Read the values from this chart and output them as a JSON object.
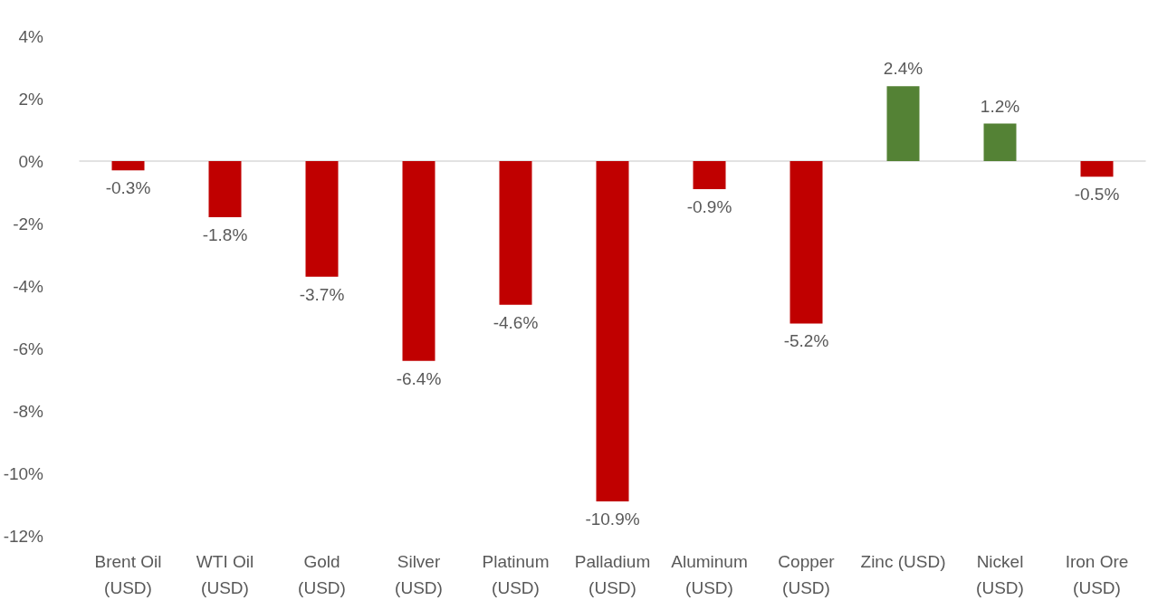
{
  "chart_data": {
    "type": "bar",
    "categories": [
      "Brent Oil\n(USD)",
      "WTI Oil\n(USD)",
      "Gold\n(USD)",
      "Silver\n(USD)",
      "Platinum\n(USD)",
      "Palladium\n(USD)",
      "Aluminum\n(USD)",
      "Copper\n(USD)",
      "Zinc (USD)",
      "Nickel\n(USD)",
      "Iron Ore\n(USD)"
    ],
    "values": [
      -0.3,
      -1.8,
      -3.7,
      -6.4,
      -4.6,
      -10.9,
      -0.9,
      -5.2,
      2.4,
      1.2,
      -0.5
    ],
    "colors": [
      "#c00000",
      "#c00000",
      "#c00000",
      "#c00000",
      "#c00000",
      "#c00000",
      "#c00000",
      "#c00000",
      "#548235",
      "#548235",
      "#c00000"
    ],
    "value_labels": [
      "-0.3%",
      "-1.8%",
      "-3.7%",
      "-6.4%",
      "-4.6%",
      "-10.9%",
      "-0.9%",
      "-5.2%",
      "2.4%",
      "1.2%",
      "-0.5%"
    ],
    "ylim": [
      -12,
      4
    ],
    "yticks": [
      {
        "value": -12,
        "label": "-12%"
      },
      {
        "value": -10,
        "label": "-10%"
      },
      {
        "value": -8,
        "label": "-8%"
      },
      {
        "value": -6,
        "label": "-6%"
      },
      {
        "value": -4,
        "label": "-4%"
      },
      {
        "value": -2,
        "label": "-2%"
      },
      {
        "value": 0,
        "label": "0%"
      },
      {
        "value": 2,
        "label": "2%"
      },
      {
        "value": 4,
        "label": "4%"
      }
    ]
  }
}
